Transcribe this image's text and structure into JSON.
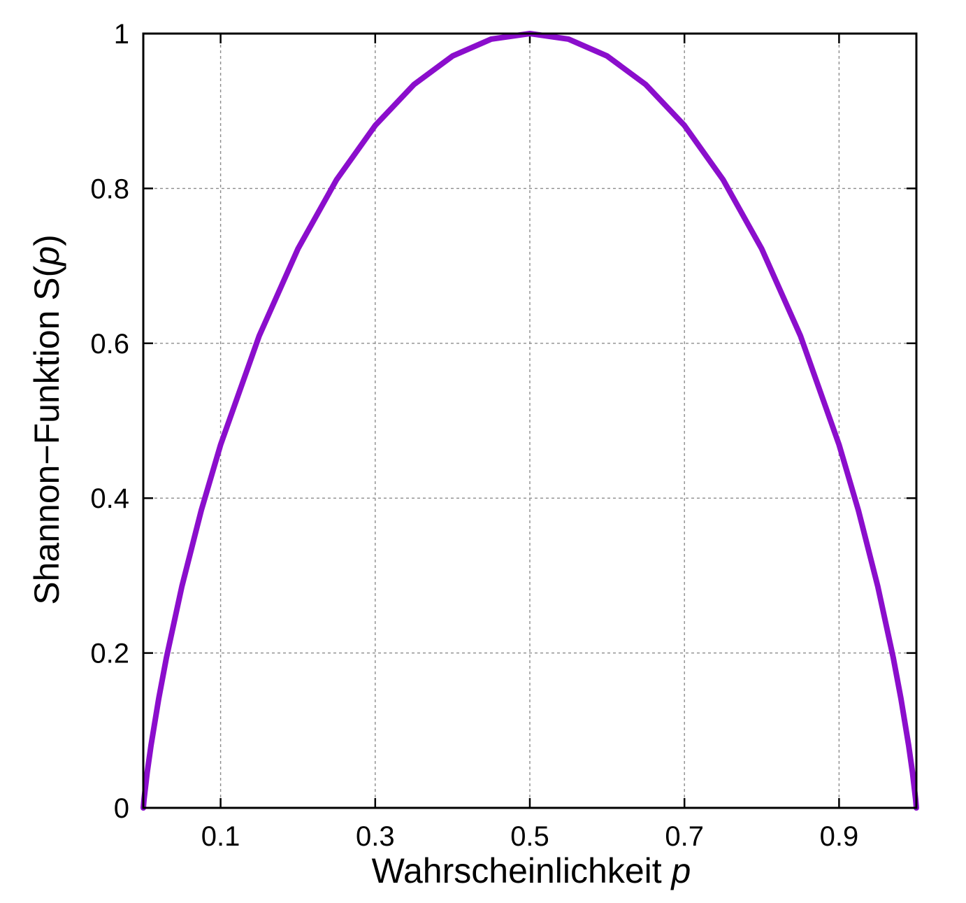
{
  "chart_data": {
    "type": "line",
    "function": "S(p) = -p*log2(p) - (1-p)*log2(1-p)",
    "xlabel": {
      "text": "Wahrscheinlichkeit ",
      "var": "p"
    },
    "ylabel": {
      "text": "Shannon−Funktion S(",
      "var": "p",
      "suffix": ")"
    },
    "xlim": [
      0,
      1
    ],
    "ylim": [
      0,
      1
    ],
    "x_ticks": [
      0.1,
      0.3,
      0.5,
      0.7,
      0.9
    ],
    "x_tick_labels": [
      "0.1",
      "0.3",
      "0.5",
      "0.7",
      "0.9"
    ],
    "y_ticks": [
      0,
      0.2,
      0.4,
      0.6,
      0.8,
      1
    ],
    "y_tick_labels": [
      "0",
      "0.2",
      "0.4",
      "0.6",
      "0.8",
      "1"
    ],
    "grid": true,
    "series": [
      {
        "x": [
          0,
          0.001,
          0.005,
          0.01,
          0.02,
          0.03,
          0.05,
          0.075,
          0.1,
          0.15,
          0.2,
          0.25,
          0.3,
          0.35,
          0.4,
          0.45,
          0.5,
          0.55,
          0.6,
          0.65,
          0.7,
          0.75,
          0.8,
          0.85,
          0.9,
          0.925,
          0.95,
          0.97,
          0.98,
          0.99,
          0.995,
          0.999,
          1
        ],
        "y": [
          0,
          0.0114,
          0.0454,
          0.0808,
          0.1414,
          0.1944,
          0.2864,
          0.3843,
          0.469,
          0.6098,
          0.7219,
          0.8113,
          0.8813,
          0.9341,
          0.971,
          0.9928,
          1,
          0.9928,
          0.971,
          0.9341,
          0.8813,
          0.8113,
          0.7219,
          0.6098,
          0.469,
          0.3843,
          0.2864,
          0.1944,
          0.1414,
          0.0808,
          0.0454,
          0.0114,
          0
        ],
        "color": "#8B0ECC"
      }
    ]
  }
}
